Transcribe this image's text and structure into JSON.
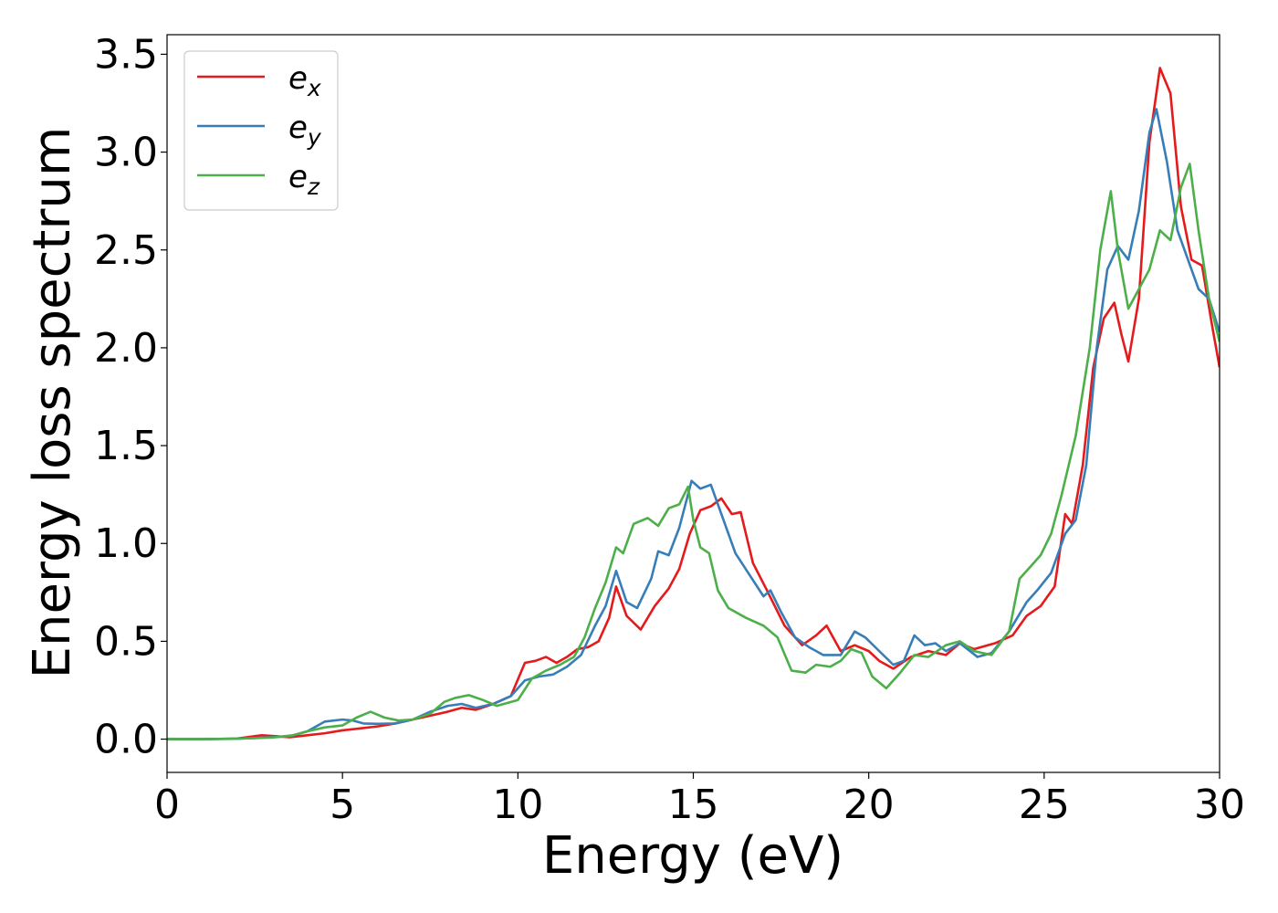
{
  "chart_data": {
    "type": "line",
    "title": "",
    "xlabel": "Energy (eV)",
    "ylabel": "Energy loss spectrum",
    "xlim": [
      0,
      30
    ],
    "ylim": [
      -0.17,
      3.6
    ],
    "xticks": [
      0,
      5,
      10,
      15,
      20,
      25,
      30
    ],
    "xtick_labels": [
      "0",
      "5",
      "10",
      "15",
      "20",
      "25",
      "30"
    ],
    "yticks": [
      0.0,
      0.5,
      1.0,
      1.5,
      2.0,
      2.5,
      3.0,
      3.5
    ],
    "ytick_labels": [
      "0.0",
      "0.5",
      "1.0",
      "1.5",
      "2.0",
      "2.5",
      "3.0",
      "3.5"
    ],
    "grid": false,
    "legend_position": "top-left",
    "series": [
      {
        "name": "e_x",
        "base": "e",
        "sub": "x",
        "color": "#e41a1c",
        "points": [
          [
            0,
            0
          ],
          [
            1,
            0
          ],
          [
            2,
            0.003
          ],
          [
            2.7,
            0.02
          ],
          [
            3.5,
            0.01
          ],
          [
            4,
            0.02
          ],
          [
            4.5,
            0.03
          ],
          [
            5,
            0.045
          ],
          [
            5.5,
            0.055
          ],
          [
            6,
            0.065
          ],
          [
            6.5,
            0.08
          ],
          [
            7,
            0.1
          ],
          [
            7.5,
            0.12
          ],
          [
            8,
            0.14
          ],
          [
            8.4,
            0.16
          ],
          [
            8.8,
            0.15
          ],
          [
            9.3,
            0.18
          ],
          [
            9.8,
            0.22
          ],
          [
            10.2,
            0.39
          ],
          [
            10.5,
            0.4
          ],
          [
            10.8,
            0.42
          ],
          [
            11.1,
            0.39
          ],
          [
            11.4,
            0.42
          ],
          [
            11.7,
            0.46
          ],
          [
            12.0,
            0.47
          ],
          [
            12.3,
            0.5
          ],
          [
            12.6,
            0.62
          ],
          [
            12.8,
            0.78
          ],
          [
            13.1,
            0.63
          ],
          [
            13.5,
            0.56
          ],
          [
            13.9,
            0.68
          ],
          [
            14.3,
            0.77
          ],
          [
            14.6,
            0.87
          ],
          [
            14.9,
            1.05
          ],
          [
            15.2,
            1.17
          ],
          [
            15.5,
            1.19
          ],
          [
            15.8,
            1.23
          ],
          [
            16.1,
            1.15
          ],
          [
            16.35,
            1.16
          ],
          [
            16.7,
            0.9
          ],
          [
            17.1,
            0.76
          ],
          [
            17.6,
            0.58
          ],
          [
            18.1,
            0.48
          ],
          [
            18.5,
            0.53
          ],
          [
            18.8,
            0.58
          ],
          [
            19.2,
            0.45
          ],
          [
            19.6,
            0.48
          ],
          [
            20.0,
            0.45
          ],
          [
            20.3,
            0.4
          ],
          [
            20.7,
            0.36
          ],
          [
            21.2,
            0.42
          ],
          [
            21.7,
            0.45
          ],
          [
            22.2,
            0.43
          ],
          [
            22.6,
            0.49
          ],
          [
            23.0,
            0.46
          ],
          [
            23.6,
            0.49
          ],
          [
            24.1,
            0.53
          ],
          [
            24.5,
            0.63
          ],
          [
            24.9,
            0.68
          ],
          [
            25.3,
            0.78
          ],
          [
            25.6,
            1.15
          ],
          [
            25.8,
            1.1
          ],
          [
            26.1,
            1.4
          ],
          [
            26.4,
            1.9
          ],
          [
            26.7,
            2.15
          ],
          [
            27.0,
            2.23
          ],
          [
            27.2,
            2.07
          ],
          [
            27.4,
            1.93
          ],
          [
            27.7,
            2.25
          ],
          [
            28.0,
            3.05
          ],
          [
            28.3,
            3.43
          ],
          [
            28.6,
            3.3
          ],
          [
            28.9,
            2.72
          ],
          [
            29.2,
            2.45
          ],
          [
            29.5,
            2.42
          ],
          [
            29.8,
            2.1
          ],
          [
            30,
            1.9
          ]
        ]
      },
      {
        "name": "e_y",
        "base": "e",
        "sub": "y",
        "color": "#377eb8",
        "points": [
          [
            0,
            0
          ],
          [
            1,
            0
          ],
          [
            2,
            0.002
          ],
          [
            3,
            0.01
          ],
          [
            3.5,
            0.015
          ],
          [
            4,
            0.04
          ],
          [
            4.5,
            0.09
          ],
          [
            5,
            0.1
          ],
          [
            5.3,
            0.095
          ],
          [
            5.6,
            0.08
          ],
          [
            6,
            0.078
          ],
          [
            6.5,
            0.08
          ],
          [
            7,
            0.1
          ],
          [
            7.5,
            0.14
          ],
          [
            8,
            0.17
          ],
          [
            8.4,
            0.18
          ],
          [
            8.8,
            0.16
          ],
          [
            9.3,
            0.18
          ],
          [
            9.8,
            0.22
          ],
          [
            10.2,
            0.3
          ],
          [
            10.6,
            0.32
          ],
          [
            11.0,
            0.33
          ],
          [
            11.4,
            0.37
          ],
          [
            11.8,
            0.43
          ],
          [
            12.2,
            0.58
          ],
          [
            12.5,
            0.68
          ],
          [
            12.8,
            0.86
          ],
          [
            13.1,
            0.7
          ],
          [
            13.4,
            0.67
          ],
          [
            13.8,
            0.82
          ],
          [
            14.0,
            0.96
          ],
          [
            14.3,
            0.94
          ],
          [
            14.6,
            1.08
          ],
          [
            14.95,
            1.32
          ],
          [
            15.2,
            1.28
          ],
          [
            15.5,
            1.3
          ],
          [
            15.8,
            1.15
          ],
          [
            16.2,
            0.95
          ],
          [
            16.6,
            0.84
          ],
          [
            17.0,
            0.73
          ],
          [
            17.2,
            0.76
          ],
          [
            17.5,
            0.65
          ],
          [
            17.9,
            0.52
          ],
          [
            18.3,
            0.47
          ],
          [
            18.7,
            0.43
          ],
          [
            19.2,
            0.43
          ],
          [
            19.6,
            0.55
          ],
          [
            19.9,
            0.52
          ],
          [
            20.3,
            0.45
          ],
          [
            20.7,
            0.38
          ],
          [
            21.0,
            0.4
          ],
          [
            21.3,
            0.53
          ],
          [
            21.6,
            0.48
          ],
          [
            21.9,
            0.49
          ],
          [
            22.2,
            0.45
          ],
          [
            22.6,
            0.49
          ],
          [
            23.1,
            0.42
          ],
          [
            23.5,
            0.44
          ],
          [
            24.0,
            0.55
          ],
          [
            24.5,
            0.7
          ],
          [
            24.8,
            0.76
          ],
          [
            25.2,
            0.85
          ],
          [
            25.6,
            1.05
          ],
          [
            25.9,
            1.12
          ],
          [
            26.2,
            1.4
          ],
          [
            26.5,
            2.0
          ],
          [
            26.8,
            2.4
          ],
          [
            27.1,
            2.52
          ],
          [
            27.4,
            2.45
          ],
          [
            27.7,
            2.7
          ],
          [
            28.0,
            3.1
          ],
          [
            28.2,
            3.22
          ],
          [
            28.5,
            2.95
          ],
          [
            28.8,
            2.6
          ],
          [
            29.1,
            2.45
          ],
          [
            29.4,
            2.3
          ],
          [
            29.7,
            2.25
          ],
          [
            30,
            2.08
          ]
        ]
      },
      {
        "name": "e_z",
        "base": "e",
        "sub": "z",
        "color": "#4daf4a",
        "points": [
          [
            0,
            0
          ],
          [
            1,
            0
          ],
          [
            2,
            0.002
          ],
          [
            3,
            0.008
          ],
          [
            3.6,
            0.02
          ],
          [
            4,
            0.04
          ],
          [
            4.5,
            0.06
          ],
          [
            5,
            0.07
          ],
          [
            5.4,
            0.11
          ],
          [
            5.8,
            0.14
          ],
          [
            6.2,
            0.11
          ],
          [
            6.6,
            0.095
          ],
          [
            7,
            0.1
          ],
          [
            7.5,
            0.13
          ],
          [
            7.9,
            0.19
          ],
          [
            8.2,
            0.21
          ],
          [
            8.6,
            0.225
          ],
          [
            9.0,
            0.2
          ],
          [
            9.4,
            0.17
          ],
          [
            10.0,
            0.2
          ],
          [
            10.4,
            0.31
          ],
          [
            10.8,
            0.35
          ],
          [
            11.2,
            0.38
          ],
          [
            11.6,
            0.42
          ],
          [
            11.9,
            0.52
          ],
          [
            12.2,
            0.67
          ],
          [
            12.5,
            0.8
          ],
          [
            12.8,
            0.98
          ],
          [
            13.0,
            0.95
          ],
          [
            13.3,
            1.1
          ],
          [
            13.7,
            1.13
          ],
          [
            14.0,
            1.09
          ],
          [
            14.3,
            1.18
          ],
          [
            14.6,
            1.2
          ],
          [
            14.85,
            1.29
          ],
          [
            15.0,
            1.12
          ],
          [
            15.2,
            0.98
          ],
          [
            15.45,
            0.95
          ],
          [
            15.7,
            0.76
          ],
          [
            16.0,
            0.67
          ],
          [
            16.5,
            0.62
          ],
          [
            17.0,
            0.58
          ],
          [
            17.4,
            0.52
          ],
          [
            17.8,
            0.35
          ],
          [
            18.2,
            0.34
          ],
          [
            18.5,
            0.38
          ],
          [
            18.9,
            0.37
          ],
          [
            19.2,
            0.4
          ],
          [
            19.5,
            0.46
          ],
          [
            19.8,
            0.44
          ],
          [
            20.1,
            0.32
          ],
          [
            20.5,
            0.26
          ],
          [
            20.9,
            0.34
          ],
          [
            21.3,
            0.43
          ],
          [
            21.7,
            0.42
          ],
          [
            22.2,
            0.48
          ],
          [
            22.6,
            0.5
          ],
          [
            23.0,
            0.45
          ],
          [
            23.5,
            0.43
          ],
          [
            24.0,
            0.55
          ],
          [
            24.3,
            0.82
          ],
          [
            24.6,
            0.88
          ],
          [
            24.9,
            0.94
          ],
          [
            25.2,
            1.05
          ],
          [
            25.5,
            1.25
          ],
          [
            25.9,
            1.55
          ],
          [
            26.3,
            2.0
          ],
          [
            26.6,
            2.5
          ],
          [
            26.9,
            2.8
          ],
          [
            27.1,
            2.5
          ],
          [
            27.4,
            2.2
          ],
          [
            27.7,
            2.3
          ],
          [
            28.0,
            2.4
          ],
          [
            28.3,
            2.6
          ],
          [
            28.6,
            2.55
          ],
          [
            28.9,
            2.82
          ],
          [
            29.15,
            2.94
          ],
          [
            29.4,
            2.6
          ],
          [
            29.7,
            2.25
          ],
          [
            30,
            2.03
          ]
        ]
      }
    ]
  }
}
